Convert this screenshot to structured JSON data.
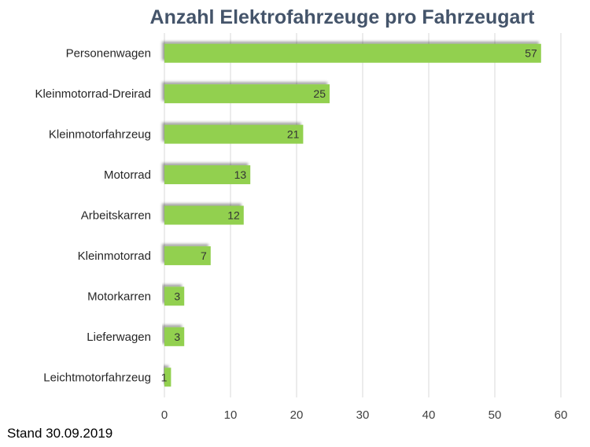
{
  "chart_data": {
    "type": "bar",
    "orientation": "horizontal",
    "title": "Anzahl Elektrofahrzeuge pro Fahrzeugart",
    "xlabel": "",
    "ylabel": "",
    "categories": [
      "Personenwagen",
      "Kleinmotorrad-Dreirad",
      "Kleinmotorfahrzeug",
      "Motorrad",
      "Arbeitskarren",
      "Kleinmotorrad",
      "Motorkarren",
      "Lieferwagen",
      "Leichtmotorfahrzeug"
    ],
    "values": [
      57,
      25,
      21,
      13,
      12,
      7,
      3,
      3,
      1
    ],
    "xlim": [
      0,
      60
    ],
    "xticks": [
      0,
      10,
      20,
      30,
      40,
      50,
      60
    ],
    "grid": true,
    "legend": "none",
    "bar_color": "#92d050"
  },
  "footnote": "Stand 30.09.2019"
}
